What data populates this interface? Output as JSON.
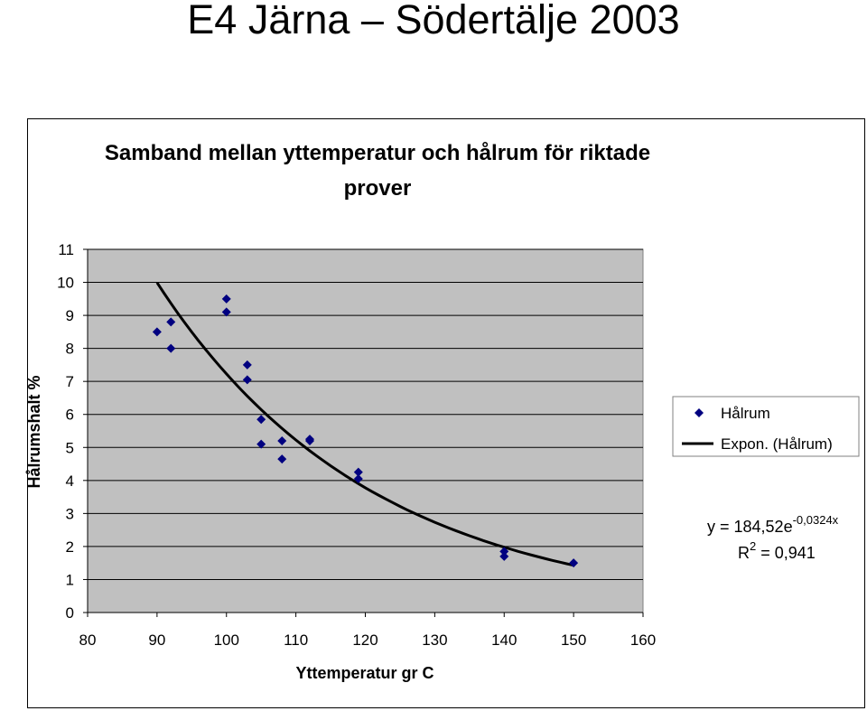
{
  "page_title": "E4 Järna – Södertälje 2003",
  "chart_data": {
    "type": "scatter",
    "title_lines": [
      "Samband mellan yttemperatur och hålrum för riktade",
      "prover"
    ],
    "xlabel": "Yttemperatur gr C",
    "ylabel": "Hålrumshalt %",
    "xlim": [
      80,
      160
    ],
    "ylim": [
      0,
      11
    ],
    "xticks": [
      80,
      90,
      100,
      110,
      120,
      130,
      140,
      150,
      160
    ],
    "yticks": [
      0,
      1,
      2,
      3,
      4,
      5,
      6,
      7,
      8,
      9,
      10,
      11
    ],
    "grid": "horizontal",
    "plot_background": "#c0c0c0",
    "marker_color": "#000080",
    "trend_color": "#000000",
    "series": [
      {
        "name": "Hålrum",
        "kind": "points",
        "points": [
          {
            "x": 90,
            "y": 8.5
          },
          {
            "x": 92,
            "y": 8.8
          },
          {
            "x": 92,
            "y": 8.0
          },
          {
            "x": 100,
            "y": 9.5
          },
          {
            "x": 100,
            "y": 9.1
          },
          {
            "x": 103,
            "y": 7.5
          },
          {
            "x": 103,
            "y": 7.05
          },
          {
            "x": 105,
            "y": 5.85
          },
          {
            "x": 105,
            "y": 5.1
          },
          {
            "x": 108,
            "y": 5.2
          },
          {
            "x": 108,
            "y": 4.65
          },
          {
            "x": 112,
            "y": 5.25
          },
          {
            "x": 112,
            "y": 5.2
          },
          {
            "x": 119,
            "y": 4.25
          },
          {
            "x": 119,
            "y": 4.05
          },
          {
            "x": 140,
            "y": 1.85
          },
          {
            "x": 140,
            "y": 1.7
          },
          {
            "x": 150,
            "y": 1.5
          }
        ]
      },
      {
        "name": "Expon. (Hålrum)",
        "kind": "trendline",
        "a": 184.52,
        "b": -0.0324,
        "x_range": [
          90,
          150
        ]
      }
    ],
    "legend_position": "right",
    "legend_entries": [
      "Hålrum",
      "Expon. (Hålrum)"
    ],
    "equation": {
      "prefix": "y = 184,52e",
      "exponent": "-0,0324x"
    },
    "r_squared": {
      "prefix": "R",
      "superscript": "2",
      "suffix": " = 0,941"
    }
  }
}
